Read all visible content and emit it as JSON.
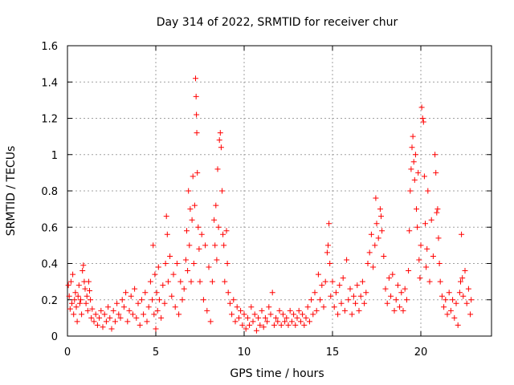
{
  "chart_data": {
    "type": "scatter",
    "title": "Day 314 of 2022, SRMTID for receiver chur",
    "xlabel": "GPS time / hours",
    "ylabel": "SRMTID / TECUs",
    "xlim": [
      0,
      24
    ],
    "ylim": [
      0,
      1.6
    ],
    "xticks": [
      0,
      5,
      10,
      15,
      20
    ],
    "xtick_labels": [
      "0",
      "5",
      "10",
      "15",
      "20"
    ],
    "yticks": [
      0,
      0.2,
      0.4,
      0.6,
      0.8,
      1.0,
      1.2,
      1.4,
      1.6
    ],
    "ytick_labels": [
      "0",
      "0.2",
      "0.4",
      "0.6",
      "0.8",
      "1",
      "1.2",
      "1.4",
      "1.6"
    ],
    "grid": true,
    "marker": "+",
    "color": "#ff0000",
    "series": [
      {
        "name": "SRMTID",
        "points": [
          [
            0.05,
            0.28
          ],
          [
            0.1,
            0.22
          ],
          [
            0.15,
            0.15
          ],
          [
            0.2,
            0.3
          ],
          [
            0.25,
            0.18
          ],
          [
            0.3,
            0.34
          ],
          [
            0.35,
            0.12
          ],
          [
            0.4,
            0.2
          ],
          [
            0.45,
            0.24
          ],
          [
            0.5,
            0.16
          ],
          [
            0.55,
            0.08
          ],
          [
            0.6,
            0.22
          ],
          [
            0.65,
            0.28
          ],
          [
            0.7,
            0.18
          ],
          [
            0.75,
            0.2
          ],
          [
            0.8,
            0.12
          ],
          [
            0.85,
            0.36
          ],
          [
            0.9,
            0.39
          ],
          [
            0.95,
            0.3
          ],
          [
            1.0,
            0.26
          ],
          [
            1.05,
            0.18
          ],
          [
            1.1,
            0.22
          ],
          [
            1.15,
            0.14
          ],
          [
            1.2,
            0.3
          ],
          [
            1.25,
            0.25
          ],
          [
            1.3,
            0.2
          ],
          [
            1.35,
            0.1
          ],
          [
            1.4,
            0.15
          ],
          [
            1.5,
            0.08
          ],
          [
            1.6,
            0.12
          ],
          [
            1.7,
            0.06
          ],
          [
            1.8,
            0.1
          ],
          [
            1.9,
            0.14
          ],
          [
            2.0,
            0.05
          ],
          [
            2.1,
            0.12
          ],
          [
            2.2,
            0.08
          ],
          [
            2.3,
            0.16
          ],
          [
            2.4,
            0.1
          ],
          [
            2.5,
            0.04
          ],
          [
            2.6,
            0.14
          ],
          [
            2.7,
            0.08
          ],
          [
            2.8,
            0.18
          ],
          [
            2.9,
            0.12
          ],
          [
            3.0,
            0.1
          ],
          [
            3.1,
            0.2
          ],
          [
            3.2,
            0.16
          ],
          [
            3.3,
            0.24
          ],
          [
            3.4,
            0.08
          ],
          [
            3.5,
            0.14
          ],
          [
            3.6,
            0.22
          ],
          [
            3.7,
            0.12
          ],
          [
            3.8,
            0.26
          ],
          [
            3.9,
            0.1
          ],
          [
            4.0,
            0.18
          ],
          [
            4.1,
            0.06
          ],
          [
            4.2,
            0.2
          ],
          [
            4.3,
            0.12
          ],
          [
            4.4,
            0.24
          ],
          [
            4.5,
            0.08
          ],
          [
            4.6,
            0.16
          ],
          [
            4.7,
            0.3
          ],
          [
            4.8,
            0.2
          ],
          [
            4.85,
            0.5
          ],
          [
            4.9,
            0.12
          ],
          [
            4.95,
            0.34
          ],
          [
            5.0,
            0.04
          ],
          [
            5.05,
            0.24
          ],
          [
            5.1,
            0.14
          ],
          [
            5.15,
            0.38
          ],
          [
            5.2,
            0.2
          ],
          [
            5.3,
            0.1
          ],
          [
            5.4,
            0.28
          ],
          [
            5.5,
            0.18
          ],
          [
            5.55,
            0.4
          ],
          [
            5.6,
            0.66
          ],
          [
            5.65,
            0.56
          ],
          [
            5.7,
            0.3
          ],
          [
            5.8,
            0.44
          ],
          [
            5.9,
            0.22
          ],
          [
            6.0,
            0.34
          ],
          [
            6.1,
            0.16
          ],
          [
            6.2,
            0.4
          ],
          [
            6.3,
            0.12
          ],
          [
            6.4,
            0.3
          ],
          [
            6.5,
            0.2
          ],
          [
            6.6,
            0.26
          ],
          [
            6.7,
            0.42
          ],
          [
            6.75,
            0.58
          ],
          [
            6.8,
            0.36
          ],
          [
            6.85,
            0.8
          ],
          [
            6.9,
            0.5
          ],
          [
            6.95,
            0.7
          ],
          [
            7.0,
            0.3
          ],
          [
            7.05,
            0.64
          ],
          [
            7.1,
            0.88
          ],
          [
            7.15,
            0.4
          ],
          [
            7.2,
            0.72
          ],
          [
            7.25,
            1.42
          ],
          [
            7.28,
            1.32
          ],
          [
            7.3,
            1.22
          ],
          [
            7.32,
            1.12
          ],
          [
            7.35,
            0.9
          ],
          [
            7.4,
            0.6
          ],
          [
            7.45,
            0.48
          ],
          [
            7.5,
            0.3
          ],
          [
            7.6,
            0.56
          ],
          [
            7.7,
            0.2
          ],
          [
            7.8,
            0.5
          ],
          [
            7.9,
            0.14
          ],
          [
            8.0,
            0.38
          ],
          [
            8.1,
            0.08
          ],
          [
            8.2,
            0.3
          ],
          [
            8.3,
            0.64
          ],
          [
            8.35,
            0.5
          ],
          [
            8.4,
            0.72
          ],
          [
            8.45,
            0.42
          ],
          [
            8.5,
            0.92
          ],
          [
            8.55,
            0.6
          ],
          [
            8.6,
            1.08
          ],
          [
            8.65,
            1.12
          ],
          [
            8.7,
            1.04
          ],
          [
            8.75,
            0.8
          ],
          [
            8.8,
            0.56
          ],
          [
            8.85,
            0.5
          ],
          [
            8.9,
            0.3
          ],
          [
            9.0,
            0.58
          ],
          [
            9.05,
            0.4
          ],
          [
            9.1,
            0.24
          ],
          [
            9.2,
            0.18
          ],
          [
            9.3,
            0.12
          ],
          [
            9.4,
            0.2
          ],
          [
            9.5,
            0.08
          ],
          [
            9.6,
            0.16
          ],
          [
            9.7,
            0.1
          ],
          [
            9.8,
            0.14
          ],
          [
            9.9,
            0.06
          ],
          [
            10.0,
            0.12
          ],
          [
            10.1,
            0.04
          ],
          [
            10.2,
            0.1
          ],
          [
            10.3,
            0.06
          ],
          [
            10.4,
            0.16
          ],
          [
            10.5,
            0.08
          ],
          [
            10.6,
            0.12
          ],
          [
            10.7,
            0.03
          ],
          [
            10.8,
            0.1
          ],
          [
            10.9,
            0.06
          ],
          [
            11.0,
            0.14
          ],
          [
            11.1,
            0.05
          ],
          [
            11.2,
            0.1
          ],
          [
            11.3,
            0.08
          ],
          [
            11.4,
            0.16
          ],
          [
            11.5,
            0.12
          ],
          [
            11.6,
            0.24
          ],
          [
            11.7,
            0.06
          ],
          [
            11.8,
            0.1
          ],
          [
            11.9,
            0.08
          ],
          [
            12.0,
            0.14
          ],
          [
            12.1,
            0.06
          ],
          [
            12.2,
            0.12
          ],
          [
            12.3,
            0.08
          ],
          [
            12.4,
            0.1
          ],
          [
            12.5,
            0.06
          ],
          [
            12.6,
            0.14
          ],
          [
            12.7,
            0.08
          ],
          [
            12.8,
            0.12
          ],
          [
            12.9,
            0.06
          ],
          [
            13.0,
            0.1
          ],
          [
            13.1,
            0.14
          ],
          [
            13.2,
            0.08
          ],
          [
            13.3,
            0.12
          ],
          [
            13.4,
            0.06
          ],
          [
            13.5,
            0.1
          ],
          [
            13.6,
            0.16
          ],
          [
            13.7,
            0.08
          ],
          [
            13.8,
            0.2
          ],
          [
            13.9,
            0.12
          ],
          [
            14.0,
            0.24
          ],
          [
            14.1,
            0.14
          ],
          [
            14.2,
            0.34
          ],
          [
            14.3,
            0.2
          ],
          [
            14.4,
            0.28
          ],
          [
            14.5,
            0.16
          ],
          [
            14.6,
            0.3
          ],
          [
            14.7,
            0.46
          ],
          [
            14.75,
            0.5
          ],
          [
            14.8,
            0.62
          ],
          [
            14.85,
            0.4
          ],
          [
            14.9,
            0.22
          ],
          [
            15.0,
            0.3
          ],
          [
            15.1,
            0.16
          ],
          [
            15.2,
            0.24
          ],
          [
            15.3,
            0.12
          ],
          [
            15.4,
            0.28
          ],
          [
            15.5,
            0.18
          ],
          [
            15.6,
            0.32
          ],
          [
            15.7,
            0.14
          ],
          [
            15.8,
            0.42
          ],
          [
            15.9,
            0.2
          ],
          [
            16.0,
            0.26
          ],
          [
            16.1,
            0.12
          ],
          [
            16.2,
            0.22
          ],
          [
            16.3,
            0.18
          ],
          [
            16.4,
            0.28
          ],
          [
            16.5,
            0.14
          ],
          [
            16.6,
            0.22
          ],
          [
            16.7,
            0.3
          ],
          [
            16.8,
            0.18
          ],
          [
            16.9,
            0.24
          ],
          [
            17.0,
            0.4
          ],
          [
            17.1,
            0.46
          ],
          [
            17.2,
            0.56
          ],
          [
            17.3,
            0.38
          ],
          [
            17.4,
            0.5
          ],
          [
            17.45,
            0.76
          ],
          [
            17.5,
            0.62
          ],
          [
            17.6,
            0.54
          ],
          [
            17.7,
            0.7
          ],
          [
            17.75,
            0.66
          ],
          [
            17.8,
            0.58
          ],
          [
            17.9,
            0.44
          ],
          [
            18.0,
            0.26
          ],
          [
            18.1,
            0.18
          ],
          [
            18.2,
            0.32
          ],
          [
            18.3,
            0.22
          ],
          [
            18.4,
            0.34
          ],
          [
            18.5,
            0.14
          ],
          [
            18.6,
            0.2
          ],
          [
            18.7,
            0.28
          ],
          [
            18.8,
            0.16
          ],
          [
            18.9,
            0.24
          ],
          [
            19.0,
            0.14
          ],
          [
            19.1,
            0.26
          ],
          [
            19.2,
            0.2
          ],
          [
            19.3,
            0.36
          ],
          [
            19.35,
            0.58
          ],
          [
            19.4,
            0.8
          ],
          [
            19.45,
            0.92
          ],
          [
            19.5,
            1.04
          ],
          [
            19.55,
            1.1
          ],
          [
            19.6,
            0.96
          ],
          [
            19.65,
            0.86
          ],
          [
            19.7,
            1.0
          ],
          [
            19.75,
            0.7
          ],
          [
            19.8,
            0.6
          ],
          [
            19.85,
            0.9
          ],
          [
            19.9,
            0.42
          ],
          [
            19.95,
            0.32
          ],
          [
            20.0,
            0.5
          ],
          [
            20.05,
            1.26
          ],
          [
            20.1,
            1.2
          ],
          [
            20.15,
            1.18
          ],
          [
            20.2,
            0.88
          ],
          [
            20.25,
            0.62
          ],
          [
            20.3,
            0.38
          ],
          [
            20.35,
            0.48
          ],
          [
            20.4,
            0.8
          ],
          [
            20.5,
            0.3
          ],
          [
            20.6,
            0.64
          ],
          [
            20.7,
            0.44
          ],
          [
            20.8,
            1.0
          ],
          [
            20.85,
            0.9
          ],
          [
            20.9,
            0.68
          ],
          [
            20.95,
            0.7
          ],
          [
            21.0,
            0.54
          ],
          [
            21.05,
            0.4
          ],
          [
            21.1,
            0.3
          ],
          [
            21.2,
            0.22
          ],
          [
            21.3,
            0.16
          ],
          [
            21.4,
            0.2
          ],
          [
            21.5,
            0.12
          ],
          [
            21.6,
            0.24
          ],
          [
            21.7,
            0.14
          ],
          [
            21.8,
            0.2
          ],
          [
            21.9,
            0.1
          ],
          [
            22.0,
            0.18
          ],
          [
            22.1,
            0.06
          ],
          [
            22.2,
            0.24
          ],
          [
            22.25,
            0.3
          ],
          [
            22.3,
            0.56
          ],
          [
            22.35,
            0.32
          ],
          [
            22.4,
            0.22
          ],
          [
            22.5,
            0.36
          ],
          [
            22.6,
            0.18
          ],
          [
            22.7,
            0.26
          ],
          [
            22.8,
            0.12
          ],
          [
            22.85,
            0.2
          ]
        ]
      }
    ]
  }
}
